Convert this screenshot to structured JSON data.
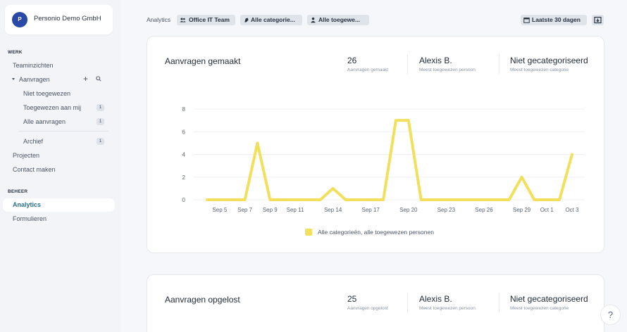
{
  "sidebar": {
    "org_initial": "P",
    "org_name": "Personio Demo GmbH",
    "section_werk": "WERK",
    "section_beheer": "BEHEER",
    "items": {
      "teaminzichten": "Teaminzichten",
      "aanvragen": "Aanvragen",
      "niet_toegewezen": "Niet toegewezen",
      "toegewezen_aan_mij": "Toegewezen aan mij",
      "toegewezen_aan_mij_count": "1",
      "alle_aanvragen": "Alle aanvragen",
      "alle_aanvragen_count": "1",
      "archief": "Archief",
      "archief_count": "1",
      "projecten": "Projecten",
      "contact_maken": "Contact maken",
      "analytics": "Analytics",
      "formulieren": "Formulieren"
    }
  },
  "topbar": {
    "breadcrumb": "Analytics",
    "team_filter": "Office IT Team",
    "category_filter": "Alle categorie...",
    "assignee_filter": "Alle toegewe...",
    "date_range": "Laatste 30 dagen"
  },
  "card1": {
    "title": "Aanvragen gemaakt",
    "stat1_value": "26",
    "stat1_label": "Aanvragen gemaakt",
    "stat2_value": "Alexis B.",
    "stat2_label": "Meest toegewezen persoon",
    "stat3_value": "Niet gecategoriseerd",
    "stat3_label": "Meest toegewezen categorie"
  },
  "card2": {
    "title": "Aanvragen opgelost",
    "stat1_value": "25",
    "stat1_label": "Aanvragen opgelost",
    "stat2_value": "Alexis B.",
    "stat2_label": "Meest toegewezen persoon",
    "stat3_value": "Niet gecategoriseerd",
    "stat3_label": "Meest toegewezen categorie"
  },
  "help_label": "?",
  "colors": {
    "line": "#f2e05c",
    "accent": "#2a6f8a",
    "avatar": "#2a4aa8"
  },
  "chart_data": {
    "type": "line",
    "title": "",
    "xlabel": "",
    "ylabel": "",
    "ylim": [
      0,
      8
    ],
    "yticks": [
      0,
      2,
      4,
      6,
      8
    ],
    "x": [
      "Sep 4",
      "Sep 5",
      "Sep 6",
      "Sep 7",
      "Sep 8",
      "Sep 9",
      "Sep 10",
      "Sep 11",
      "Sep 12",
      "Sep 13",
      "Sep 14",
      "Sep 15",
      "Sep 16",
      "Sep 17",
      "Sep 18",
      "Sep 19",
      "Sep 20",
      "Sep 21",
      "Sep 22",
      "Sep 23",
      "Sep 24",
      "Sep 25",
      "Sep 26",
      "Sep 27",
      "Sep 28",
      "Sep 29",
      "Sep 30",
      "Oct 1",
      "Oct 2",
      "Oct 3"
    ],
    "xtick_labels": [
      "Sep 5",
      "Sep 7",
      "Sep 9",
      "Sep 11",
      "Sep 14",
      "Sep 17",
      "Sep 20",
      "Sep 23",
      "Sep 26",
      "Sep 29",
      "Oct 1",
      "Oct 3"
    ],
    "series": [
      {
        "name": "Alle categorieën, alle toegewezen personen",
        "values": [
          0,
          0,
          0,
          0,
          5,
          0,
          0,
          0,
          0,
          0,
          1,
          0,
          0,
          0,
          0,
          7,
          7,
          0,
          0,
          0,
          0,
          0,
          0,
          0,
          0,
          2,
          0,
          0,
          0,
          4
        ]
      }
    ],
    "grid": true,
    "legend_position": "bottom"
  }
}
